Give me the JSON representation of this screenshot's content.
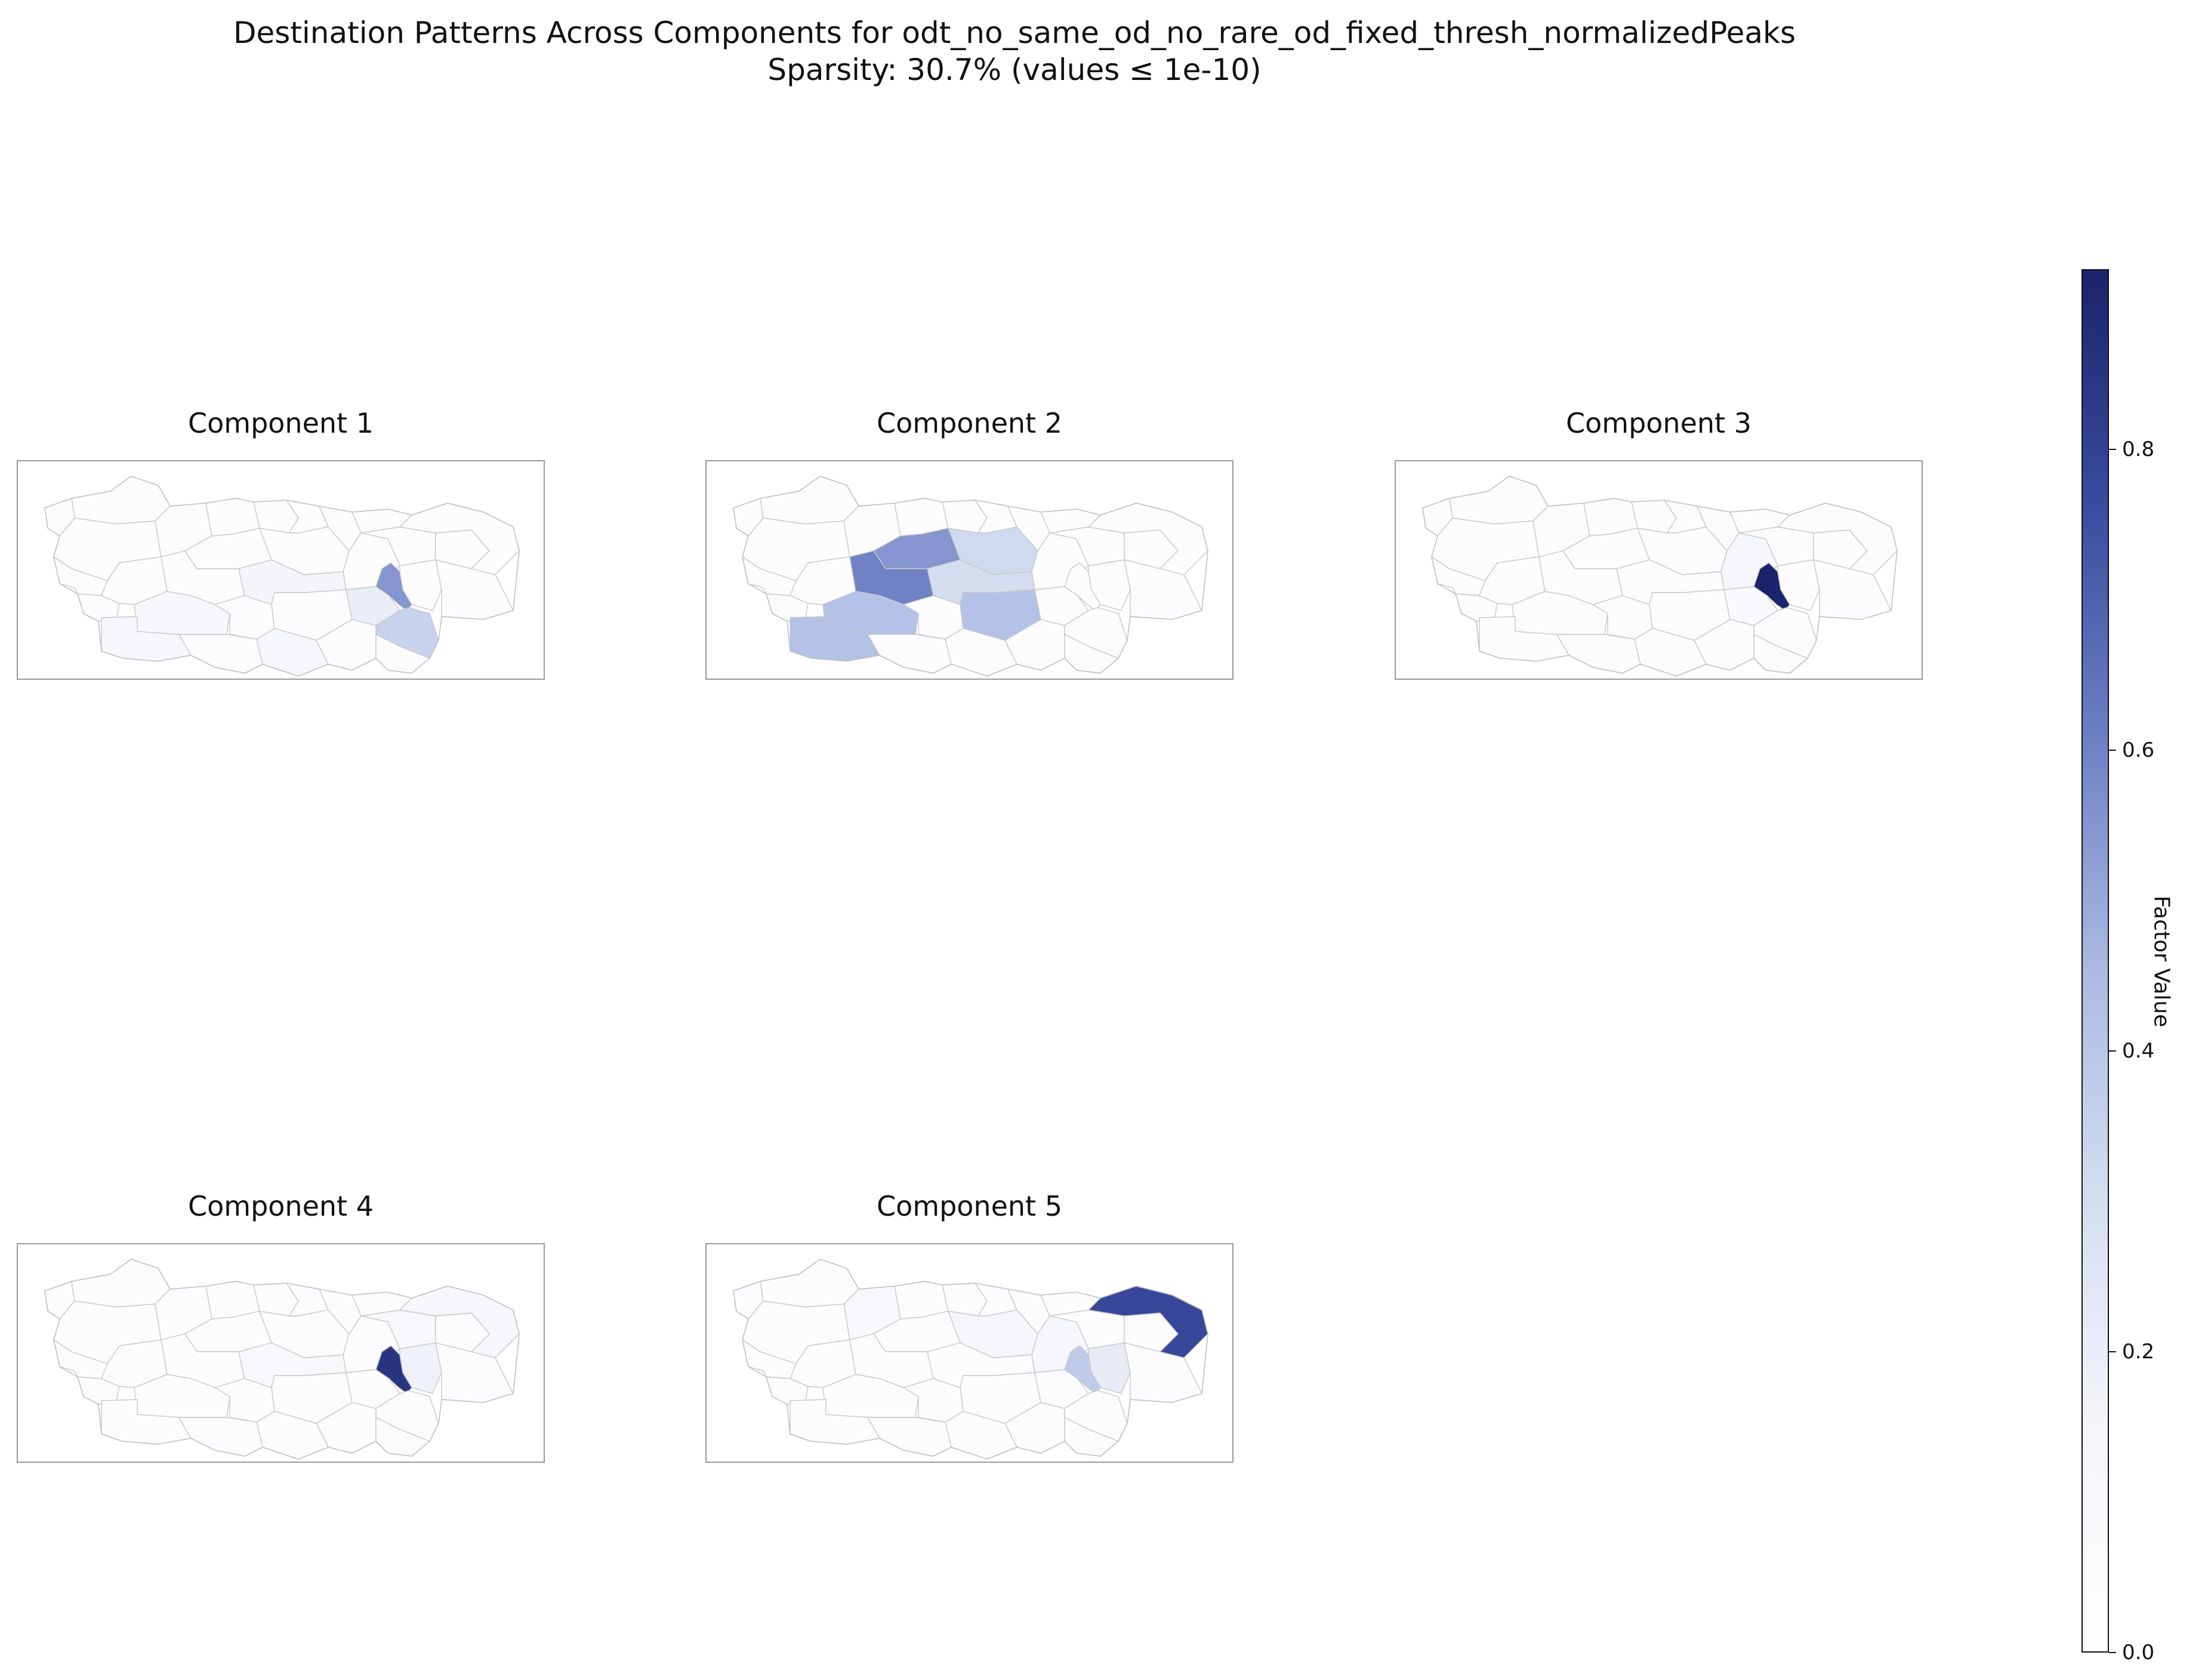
{
  "figure": {
    "title_line1": "Destination Patterns Across Components for odt_no_same_od_no_rare_od_fixed_thresh_normalizedPeaks",
    "title_line2": "Sparsity: 30.7% (values ≤ 1e-10)"
  },
  "panels": [
    {
      "title": "Component 1",
      "highlights": [
        {
          "zone": "z24",
          "value": 0.55
        },
        {
          "zone": "z29",
          "value": 0.35
        },
        {
          "zone": "z28",
          "value": 0.2
        },
        {
          "zone": "z12",
          "value": 0.12
        },
        {
          "zone": "z11",
          "value": 0.12
        },
        {
          "zone": "z18",
          "value": 0.15
        },
        {
          "zone": "z22",
          "value": 0.12
        }
      ]
    },
    {
      "title": "Component 2",
      "highlights": [
        {
          "zone": "z10",
          "value": 0.6
        },
        {
          "zone": "z09",
          "value": 0.55
        },
        {
          "zone": "z17",
          "value": 0.32
        },
        {
          "zone": "z12",
          "value": 0.42
        },
        {
          "zone": "z20",
          "value": 0.42
        },
        {
          "zone": "z11",
          "value": 0.42
        },
        {
          "zone": "z18",
          "value": 0.3
        }
      ]
    },
    {
      "title": "Component 3",
      "highlights": [
        {
          "zone": "z24",
          "value": 0.92
        },
        {
          "zone": "z23",
          "value": 0.12
        },
        {
          "zone": "z28",
          "value": 0.08
        },
        {
          "zone": "z30",
          "value": 0.06
        }
      ]
    },
    {
      "title": "Component 4",
      "highlights": [
        {
          "zone": "z24",
          "value": 0.85
        },
        {
          "zone": "z25",
          "value": 0.18
        },
        {
          "zone": "z33",
          "value": 0.12
        },
        {
          "zone": "z18",
          "value": 0.1
        },
        {
          "zone": "z26",
          "value": 0.1
        }
      ]
    },
    {
      "title": "Component 5",
      "highlights": [
        {
          "zone": "z33",
          "value": 0.78
        },
        {
          "zone": "z24",
          "value": 0.38
        },
        {
          "zone": "z25",
          "value": 0.22
        },
        {
          "zone": "z23",
          "value": 0.12
        },
        {
          "zone": "z17",
          "value": 0.12
        },
        {
          "zone": "z04",
          "value": 0.1
        }
      ]
    }
  ],
  "colorbar": {
    "label": "Factor Value",
    "ticks": [
      {
        "value": 0.0,
        "label": "0.0"
      },
      {
        "value": 0.2,
        "label": "0.2"
      },
      {
        "value": 0.4,
        "label": "0.4"
      },
      {
        "value": 0.6,
        "label": "0.6"
      },
      {
        "value": 0.8,
        "label": "0.8"
      }
    ],
    "vmax": 0.92,
    "colors": [
      "#ffffff",
      "#f4f5fb",
      "#d3ddf0",
      "#a8b8e2",
      "#6b7dc2",
      "#3a4b9e",
      "#1a236b"
    ]
  }
}
